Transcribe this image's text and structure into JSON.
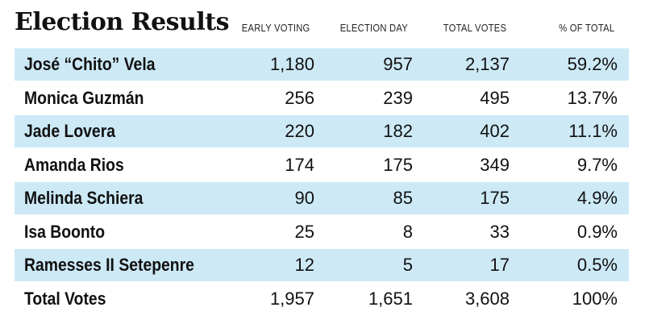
{
  "title": "Election Results",
  "colors": {
    "shade": "#cde9f6",
    "text": "#111111",
    "background": "#ffffff"
  },
  "chart_data": {
    "type": "table",
    "title": "Election Results",
    "columns": [
      "EARLY VOTING",
      "ELECTION DAY",
      "TOTAL VOTES",
      "% OF TOTAL"
    ],
    "rows": [
      {
        "name": "José “Chito” Vela",
        "early": "1,180",
        "eday": "957",
        "total": "2,137",
        "pct": "59.2%"
      },
      {
        "name": "Monica Guzmán",
        "early": "256",
        "eday": "239",
        "total": "495",
        "pct": "13.7%"
      },
      {
        "name": "Jade Lovera",
        "early": "220",
        "eday": "182",
        "total": "402",
        "pct": "11.1%"
      },
      {
        "name": "Amanda Rios",
        "early": "174",
        "eday": "175",
        "total": "349",
        "pct": "9.7%"
      },
      {
        "name": "Melinda Schiera",
        "early": "90",
        "eday": "85",
        "total": "175",
        "pct": "4.9%"
      },
      {
        "name": "Isa Boonto",
        "early": "25",
        "eday": "8",
        "total": "33",
        "pct": "0.9%"
      },
      {
        "name": "Ramesses II Setepenre",
        "early": "12",
        "eday": "5",
        "total": "17",
        "pct": "0.5%"
      },
      {
        "name": "Total Votes",
        "early": "1,957",
        "eday": "1,651",
        "total": "3,608",
        "pct": "100%"
      }
    ]
  }
}
